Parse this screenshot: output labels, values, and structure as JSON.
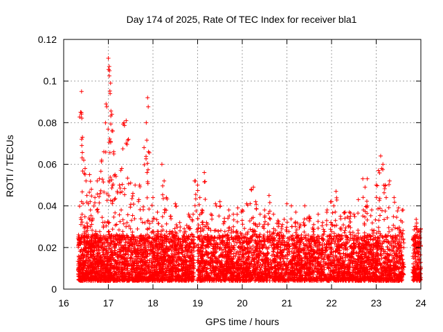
{
  "chart_data": {
    "type": "scatter",
    "title": "Day 174 of 2025, Rate Of TEC Index for receiver bla1",
    "xlabel": "GPS time / hours",
    "ylabel": "ROTI / TECUs",
    "xlim": [
      16,
      24
    ],
    "ylim": [
      0,
      0.12
    ],
    "xticks": [
      16,
      17,
      18,
      19,
      20,
      21,
      22,
      23,
      24
    ],
    "yticks": [
      0,
      0.02,
      0.04,
      0.06,
      0.08,
      0.1,
      0.12
    ],
    "grid": true,
    "marker": "+",
    "color": "#ff0000",
    "series": [
      {
        "name": "ROTI",
        "notes": "Dense scatter; points listed are sampled approximations of the visible distribution (background band 0.005–0.025 plus excursions).",
        "x": [
          16.35,
          16.38,
          16.4,
          16.42,
          16.45,
          16.48,
          16.5,
          16.52,
          16.55,
          16.58,
          16.6,
          16.62,
          16.65,
          16.7,
          16.75,
          16.8,
          16.85,
          16.9,
          16.95,
          17.0,
          17.02,
          17.04,
          17.05,
          17.08,
          17.1,
          17.12,
          17.15,
          17.2,
          17.25,
          17.3,
          17.35,
          17.4,
          17.45,
          17.5,
          17.55,
          17.6,
          17.7,
          17.8,
          17.85,
          17.88,
          17.9,
          18.0,
          18.1,
          18.2,
          18.25,
          18.3,
          18.4,
          18.5,
          18.6,
          18.7,
          18.8,
          18.9,
          18.95,
          19.0,
          19.05,
          19.1,
          19.15,
          19.2,
          19.3,
          19.4,
          19.5,
          19.6,
          19.7,
          19.8,
          19.9,
          20.0,
          20.1,
          20.2,
          20.25,
          20.3,
          20.4,
          20.5,
          20.6,
          20.7,
          20.8,
          20.9,
          21.0,
          21.1,
          21.2,
          21.3,
          21.4,
          21.5,
          21.6,
          21.7,
          21.8,
          21.9,
          22.0,
          22.05,
          22.1,
          22.2,
          22.3,
          22.4,
          22.5,
          22.6,
          22.7,
          22.75,
          22.8,
          22.9,
          23.0,
          23.05,
          23.1,
          23.15,
          23.2,
          23.3,
          23.4,
          23.5,
          23.55,
          23.6,
          23.9,
          23.95,
          24.0
        ],
        "y": [
          0.025,
          0.085,
          0.095,
          0.073,
          0.062,
          0.058,
          0.052,
          0.045,
          0.041,
          0.055,
          0.038,
          0.048,
          0.034,
          0.044,
          0.052,
          0.053,
          0.062,
          0.066,
          0.089,
          0.111,
          0.107,
          0.094,
          0.099,
          0.084,
          0.076,
          0.066,
          0.055,
          0.047,
          0.05,
          0.058,
          0.08,
          0.081,
          0.072,
          0.051,
          0.046,
          0.05,
          0.05,
          0.068,
          0.08,
          0.092,
          0.066,
          0.044,
          0.037,
          0.06,
          0.052,
          0.044,
          0.035,
          0.041,
          0.032,
          0.029,
          0.036,
          0.036,
          0.052,
          0.05,
          0.044,
          0.038,
          0.056,
          0.032,
          0.036,
          0.041,
          0.042,
          0.034,
          0.038,
          0.036,
          0.039,
          0.038,
          0.041,
          0.048,
          0.049,
          0.042,
          0.036,
          0.038,
          0.045,
          0.036,
          0.033,
          0.031,
          0.041,
          0.04,
          0.037,
          0.031,
          0.04,
          0.035,
          0.031,
          0.036,
          0.032,
          0.038,
          0.042,
          0.04,
          0.047,
          0.035,
          0.037,
          0.037,
          0.036,
          0.043,
          0.053,
          0.049,
          0.053,
          0.038,
          0.05,
          0.057,
          0.064,
          0.06,
          0.05,
          0.052,
          0.044,
          0.039,
          0.033,
          0.038,
          0.03,
          0.028,
          0.029
        ]
      }
    ]
  }
}
